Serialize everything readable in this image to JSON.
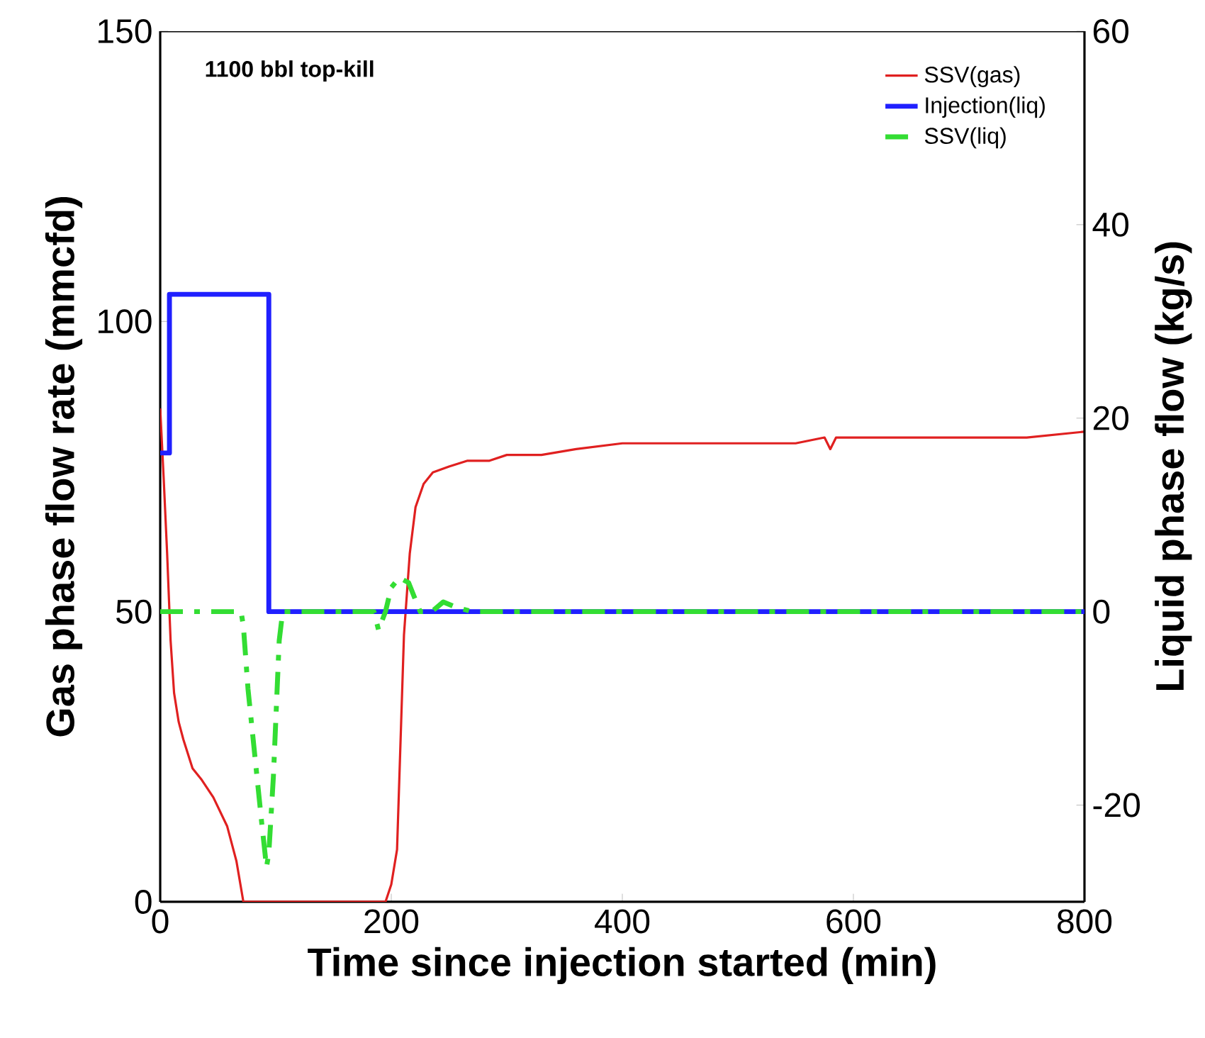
{
  "chart_data": {
    "type": "line",
    "annotations": [
      "1100 bbl top-kill"
    ],
    "xlabel": "Time since injection started (min)",
    "ylabel": "Gas phase flow rate (mmcfd)",
    "y2label": "Liquid phase flow (kg/s)",
    "xlim": [
      0,
      800
    ],
    "xticks": [
      0,
      200,
      400,
      600,
      800
    ],
    "ylim": [
      0,
      150
    ],
    "yticks": [
      0,
      50,
      100,
      150
    ],
    "y2lim": [
      -30,
      60
    ],
    "y2ticks": [
      -20,
      0,
      20,
      40,
      60
    ],
    "legend": "top right",
    "marker": "none",
    "series": [
      {
        "name": "SSV(gas)",
        "color": "#e02020",
        "line_style": "solid",
        "x": [
          0,
          3,
          6,
          9,
          12,
          16,
          20,
          28,
          36,
          46,
          58,
          66,
          72,
          140,
          160,
          180,
          195,
          200,
          205,
          211,
          216,
          221,
          228,
          236,
          250,
          266,
          285,
          300,
          330,
          360,
          400,
          450,
          500,
          550,
          575,
          580,
          585,
          600,
          650,
          700,
          750,
          800
        ],
        "values": [
          85,
          73,
          60,
          45,
          36,
          31,
          28,
          23,
          21,
          18,
          13,
          7,
          0,
          0,
          0,
          0,
          0,
          3,
          9,
          46,
          60,
          68,
          72,
          74,
          75,
          76,
          76,
          77,
          77,
          78,
          79,
          79,
          79,
          79,
          80,
          78,
          80,
          80,
          80,
          80,
          80,
          81
        ]
      },
      {
        "name": "Injection(liq)",
        "color": "#2020ff",
        "line_style": "solid",
        "axis": "y2",
        "x": [
          0,
          8,
          8,
          94,
          94,
          800
        ],
        "values": [
          16.4,
          16.4,
          32.8,
          32.8,
          0,
          0
        ]
      },
      {
        "name": "SSV(liq)",
        "color": "#33dd33",
        "line_style": "dashed",
        "axis": "y2",
        "x": [
          0,
          70,
          72,
          76,
          82,
          88,
          92,
          94,
          98,
          103,
          106,
          185,
          189,
          195,
          200,
          207,
          215,
          225,
          235,
          245,
          255,
          270,
          800
        ],
        "values": [
          0,
          0,
          -1.5,
          -8,
          -15,
          -22,
          -26.4,
          -25,
          -17,
          -3,
          0,
          0,
          -1.9,
          0,
          2.5,
          3.5,
          3,
          0,
          0,
          1,
          0.5,
          0,
          0
        ]
      }
    ]
  }
}
